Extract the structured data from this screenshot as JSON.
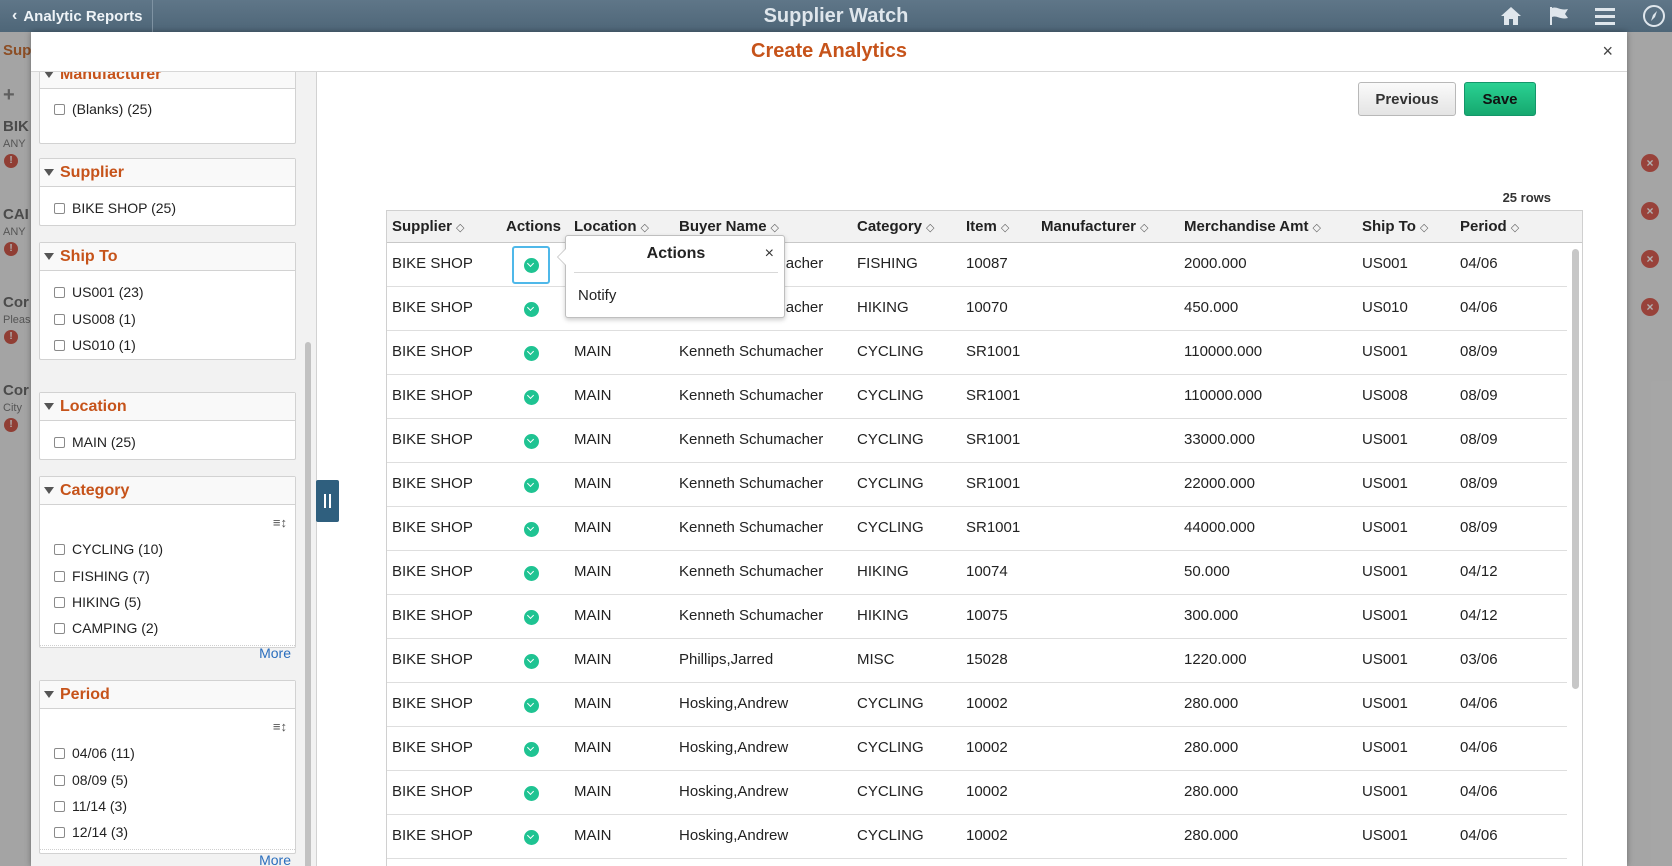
{
  "banner": {
    "back_label": "Analytic Reports",
    "title": "Supplier Watch",
    "icons": [
      "home-icon",
      "flag-icon",
      "menu-icon",
      "navbar-compass-icon"
    ]
  },
  "background": {
    "left_items": [
      {
        "title": "Sup",
        "sub": ""
      },
      {
        "title": "BIK",
        "sub": "ANY"
      },
      {
        "title": "CAI",
        "sub": "ANY"
      },
      {
        "title": "Cor",
        "sub": "Pleas"
      },
      {
        "title": "Cor",
        "sub": "City"
      }
    ]
  },
  "modal": {
    "title": "Create Analytics",
    "close_label": "×"
  },
  "filters": {
    "top_group": {
      "partial_title": "Manufacturer",
      "options": [
        "(Blanks) (25)"
      ]
    },
    "supplier": {
      "title": "Supplier",
      "options": [
        "BIKE SHOP (25)"
      ]
    },
    "ship_to": {
      "title": "Ship To",
      "options": [
        "US001 (23)",
        "US008 (1)",
        "US010 (1)"
      ]
    },
    "location": {
      "title": "Location",
      "options": [
        "MAIN (25)"
      ]
    },
    "category": {
      "title": "Category",
      "options": [
        "CYCLING (10)",
        "FISHING (7)",
        "HIKING (5)",
        "CAMPING (2)"
      ],
      "more": "More"
    },
    "period": {
      "title": "Period",
      "options": [
        "04/06 (11)",
        "08/09 (5)",
        "11/14 (3)",
        "12/14 (3)"
      ],
      "more": "More"
    }
  },
  "toolbar": {
    "previous_label": "Previous",
    "save_label": "Save"
  },
  "grid": {
    "row_count": "25 rows",
    "columns": [
      "Supplier",
      "Actions",
      "Location",
      "Buyer Name",
      "Category",
      "Item",
      "Manufacturer",
      "Merchandise Amt",
      "Ship To",
      "Period"
    ],
    "rows": [
      [
        "BIKE SHOP",
        "",
        "MAIN",
        "Kenneth Schumacher",
        "FISHING",
        "10087",
        "",
        "2000.000",
        "US001",
        "04/06"
      ],
      [
        "BIKE SHOP",
        "",
        "MAIN",
        "Kenneth Schumacher",
        "HIKING",
        "10070",
        "",
        "450.000",
        "US010",
        "04/06"
      ],
      [
        "BIKE SHOP",
        "",
        "MAIN",
        "Kenneth Schumacher",
        "CYCLING",
        "SR1001",
        "",
        "110000.000",
        "US001",
        "08/09"
      ],
      [
        "BIKE SHOP",
        "",
        "MAIN",
        "Kenneth Schumacher",
        "CYCLING",
        "SR1001",
        "",
        "110000.000",
        "US008",
        "08/09"
      ],
      [
        "BIKE SHOP",
        "",
        "MAIN",
        "Kenneth Schumacher",
        "CYCLING",
        "SR1001",
        "",
        "33000.000",
        "US001",
        "08/09"
      ],
      [
        "BIKE SHOP",
        "",
        "MAIN",
        "Kenneth Schumacher",
        "CYCLING",
        "SR1001",
        "",
        "22000.000",
        "US001",
        "08/09"
      ],
      [
        "BIKE SHOP",
        "",
        "MAIN",
        "Kenneth Schumacher",
        "CYCLING",
        "SR1001",
        "",
        "44000.000",
        "US001",
        "08/09"
      ],
      [
        "BIKE SHOP",
        "",
        "MAIN",
        "Kenneth Schumacher",
        "HIKING",
        "10074",
        "",
        "50.000",
        "US001",
        "04/12"
      ],
      [
        "BIKE SHOP",
        "",
        "MAIN",
        "Kenneth Schumacher",
        "HIKING",
        "10075",
        "",
        "300.000",
        "US001",
        "04/12"
      ],
      [
        "BIKE SHOP",
        "",
        "MAIN",
        "Phillips,Jarred",
        "MISC",
        "15028",
        "",
        "1220.000",
        "US001",
        "03/06"
      ],
      [
        "BIKE SHOP",
        "",
        "MAIN",
        "Hosking,Andrew",
        "CYCLING",
        "10002",
        "",
        "280.000",
        "US001",
        "04/06"
      ],
      [
        "BIKE SHOP",
        "",
        "MAIN",
        "Hosking,Andrew",
        "CYCLING",
        "10002",
        "",
        "280.000",
        "US001",
        "04/06"
      ],
      [
        "BIKE SHOP",
        "",
        "MAIN",
        "Hosking,Andrew",
        "CYCLING",
        "10002",
        "",
        "280.000",
        "US001",
        "04/06"
      ],
      [
        "BIKE SHOP",
        "",
        "MAIN",
        "Hosking,Andrew",
        "CYCLING",
        "10002",
        "",
        "280.000",
        "US001",
        "04/06"
      ]
    ]
  },
  "actions_popup": {
    "title": "Actions",
    "close_label": "×",
    "items": [
      "Notify"
    ]
  },
  "colors": {
    "banner": "#546c7e",
    "title_orange": "#c6531a",
    "action_green": "#1fc392",
    "save_green": "#1dbd80",
    "link_blue": "#2a6ebd"
  }
}
